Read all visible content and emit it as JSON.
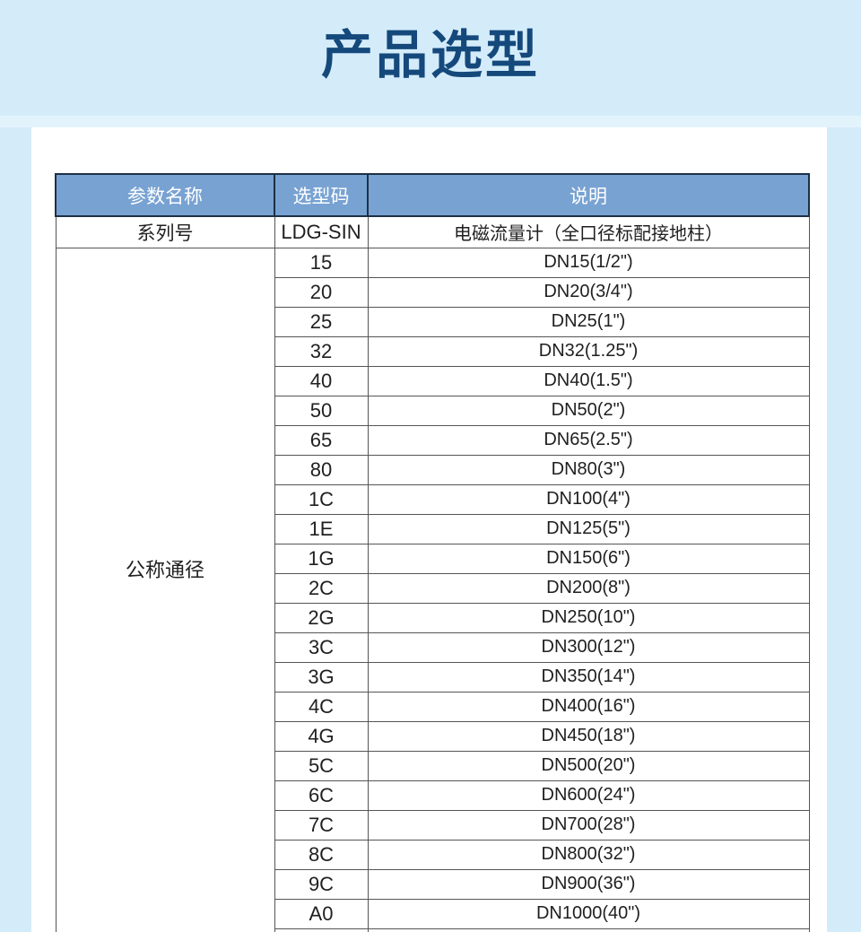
{
  "colors": {
    "page-bg": "#d4ecfa",
    "strip-bg": "#e3f3fc",
    "panel-bg": "#ffffff",
    "title-color": "#15497c",
    "header-bg": "#78a2d2",
    "header-text": "#ffffff",
    "header-border": "#1d3044",
    "body-border": "#555555",
    "body-text": "#1f1f1f"
  },
  "page": {
    "title": "产品选型"
  },
  "table": {
    "headers": [
      "参数名称",
      "选型码",
      "说明"
    ],
    "series_row": {
      "name": "系列号",
      "code": "LDG-SIN",
      "desc": "电磁流量计（全口径标配接地柱）"
    },
    "diameter_group": {
      "name": "公称通径",
      "rows": [
        {
          "code": "15",
          "desc": "DN15(1/2\")"
        },
        {
          "code": "20",
          "desc": "DN20(3/4\")"
        },
        {
          "code": "25",
          "desc": "DN25(1\")"
        },
        {
          "code": "32",
          "desc": "DN32(1.25\")"
        },
        {
          "code": "40",
          "desc": "DN40(1.5\")"
        },
        {
          "code": "50",
          "desc": "DN50(2\")"
        },
        {
          "code": "65",
          "desc": "DN65(2.5\")"
        },
        {
          "code": "80",
          "desc": "DN80(3\")"
        },
        {
          "code": "1C",
          "desc": "DN100(4\")"
        },
        {
          "code": "1E",
          "desc": "DN125(5\")"
        },
        {
          "code": "1G",
          "desc": "DN150(6\")"
        },
        {
          "code": "2C",
          "desc": "DN200(8\")"
        },
        {
          "code": "2G",
          "desc": "DN250(10\")"
        },
        {
          "code": "3C",
          "desc": "DN300(12\")"
        },
        {
          "code": "3G",
          "desc": "DN350(14\")"
        },
        {
          "code": "4C",
          "desc": "DN400(16\")"
        },
        {
          "code": "4G",
          "desc": "DN450(18\")"
        },
        {
          "code": "5C",
          "desc": "DN500(20\")"
        },
        {
          "code": "6C",
          "desc": "DN600(24\")"
        },
        {
          "code": "7C",
          "desc": "DN700(28\")"
        },
        {
          "code": "8C",
          "desc": "DN800(32\")"
        },
        {
          "code": "9C",
          "desc": "DN900(36\")"
        },
        {
          "code": "A0",
          "desc": "DN1000(40\")"
        }
      ]
    }
  }
}
